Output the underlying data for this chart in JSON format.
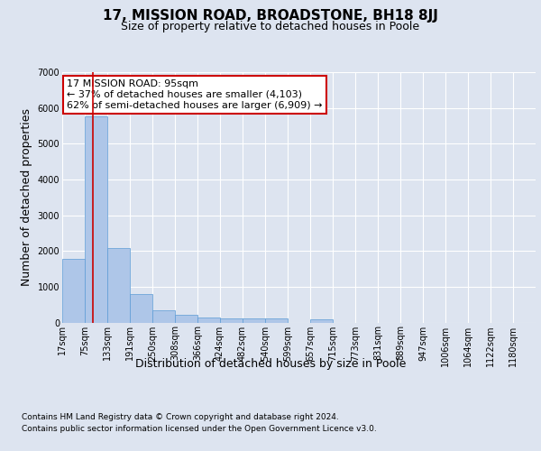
{
  "title": "17, MISSION ROAD, BROADSTONE, BH18 8JJ",
  "subtitle": "Size of property relative to detached houses in Poole",
  "xlabel": "Distribution of detached houses by size in Poole",
  "ylabel": "Number of detached properties",
  "bin_labels": [
    "17sqm",
    "75sqm",
    "133sqm",
    "191sqm",
    "250sqm",
    "308sqm",
    "366sqm",
    "424sqm",
    "482sqm",
    "540sqm",
    "599sqm",
    "657sqm",
    "715sqm",
    "773sqm",
    "831sqm",
    "889sqm",
    "947sqm",
    "1006sqm",
    "1064sqm",
    "1122sqm",
    "1180sqm"
  ],
  "bar_values": [
    1770,
    5760,
    2075,
    800,
    340,
    205,
    130,
    120,
    110,
    110,
    0,
    100,
    0,
    0,
    0,
    0,
    0,
    0,
    0,
    0,
    0
  ],
  "bar_color": "#aec6e8",
  "bar_edge_color": "#5b9bd5",
  "red_line_x": 95,
  "bin_edges": [
    17,
    75,
    133,
    191,
    250,
    308,
    366,
    424,
    482,
    540,
    599,
    657,
    715,
    773,
    831,
    889,
    947,
    1006,
    1064,
    1122,
    1180,
    1238
  ],
  "annotation_line1": "17 MISSION ROAD: 95sqm",
  "annotation_line2": "← 37% of detached houses are smaller (4,103)",
  "annotation_line3": "62% of semi-detached houses are larger (6,909) →",
  "annotation_box_color": "#ffffff",
  "annotation_box_edge": "#cc0000",
  "ylim": [
    0,
    7000
  ],
  "yticks": [
    0,
    1000,
    2000,
    3000,
    4000,
    5000,
    6000,
    7000
  ],
  "footer1": "Contains HM Land Registry data © Crown copyright and database right 2024.",
  "footer2": "Contains public sector information licensed under the Open Government Licence v3.0.",
  "bg_color": "#dde4f0",
  "plot_bg_color": "#dde4f0",
  "grid_color": "#ffffff",
  "title_fontsize": 11,
  "subtitle_fontsize": 9,
  "axis_label_fontsize": 9,
  "tick_fontsize": 7,
  "annotation_fontsize": 8,
  "footer_fontsize": 6.5
}
